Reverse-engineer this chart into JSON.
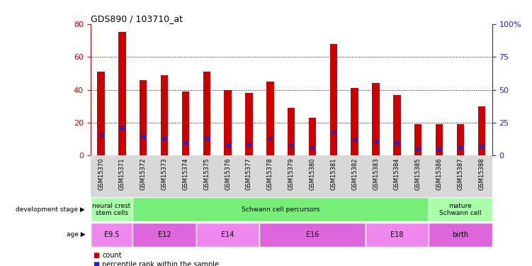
{
  "title": "GDS890 / 103710_at",
  "samples": [
    "GSM15370",
    "GSM15371",
    "GSM15372",
    "GSM15373",
    "GSM15374",
    "GSM15375",
    "GSM15376",
    "GSM15377",
    "GSM15378",
    "GSM15379",
    "GSM15380",
    "GSM15381",
    "GSM15382",
    "GSM15383",
    "GSM15384",
    "GSM15385",
    "GSM15386",
    "GSM15387",
    "GSM15388"
  ],
  "counts": [
    51,
    75,
    46,
    49,
    39,
    51,
    40,
    38,
    45,
    29,
    23,
    68,
    41,
    44,
    37,
    19,
    19,
    19,
    30
  ],
  "percentiles": [
    16,
    21,
    15,
    13,
    10,
    13,
    8,
    9,
    13,
    8,
    6,
    18,
    12,
    11,
    10,
    5,
    5,
    6,
    7
  ],
  "bar_color": "#cc0000",
  "dot_color": "#2222cc",
  "left_ylim": [
    0,
    80
  ],
  "right_ylim": [
    0,
    100
  ],
  "left_yticks": [
    0,
    20,
    40,
    60,
    80
  ],
  "right_yticks": [
    0,
    25,
    50,
    75,
    100
  ],
  "right_yticklabels": [
    "0",
    "25",
    "50",
    "75",
    "100%"
  ],
  "grid_values": [
    20,
    40,
    60
  ],
  "background_color": "#ffffff",
  "xtick_bg": "#d8d8d8",
  "stage_groups": [
    {
      "label": "neural crest\nstem cells",
      "color": "#aaffaa",
      "start": 0,
      "end": 2
    },
    {
      "label": "Schwann cell percursors",
      "color": "#77ee77",
      "start": 2,
      "end": 16
    },
    {
      "label": "mature\nSchwann cell",
      "color": "#aaffaa",
      "start": 16,
      "end": 19
    }
  ],
  "age_groups": [
    {
      "label": "E9.5",
      "color": "#ee88ee",
      "start": 0,
      "end": 2
    },
    {
      "label": "E12",
      "color": "#dd66dd",
      "start": 2,
      "end": 5
    },
    {
      "label": "E14",
      "color": "#ee88ee",
      "start": 5,
      "end": 8
    },
    {
      "label": "E16",
      "color": "#dd66dd",
      "start": 8,
      "end": 13
    },
    {
      "label": "E18",
      "color": "#ee88ee",
      "start": 13,
      "end": 16
    },
    {
      "label": "birth",
      "color": "#dd66dd",
      "start": 16,
      "end": 19
    }
  ],
  "left_axis_color": "#cc0000",
  "right_axis_color": "#2222cc",
  "bar_width": 0.35
}
